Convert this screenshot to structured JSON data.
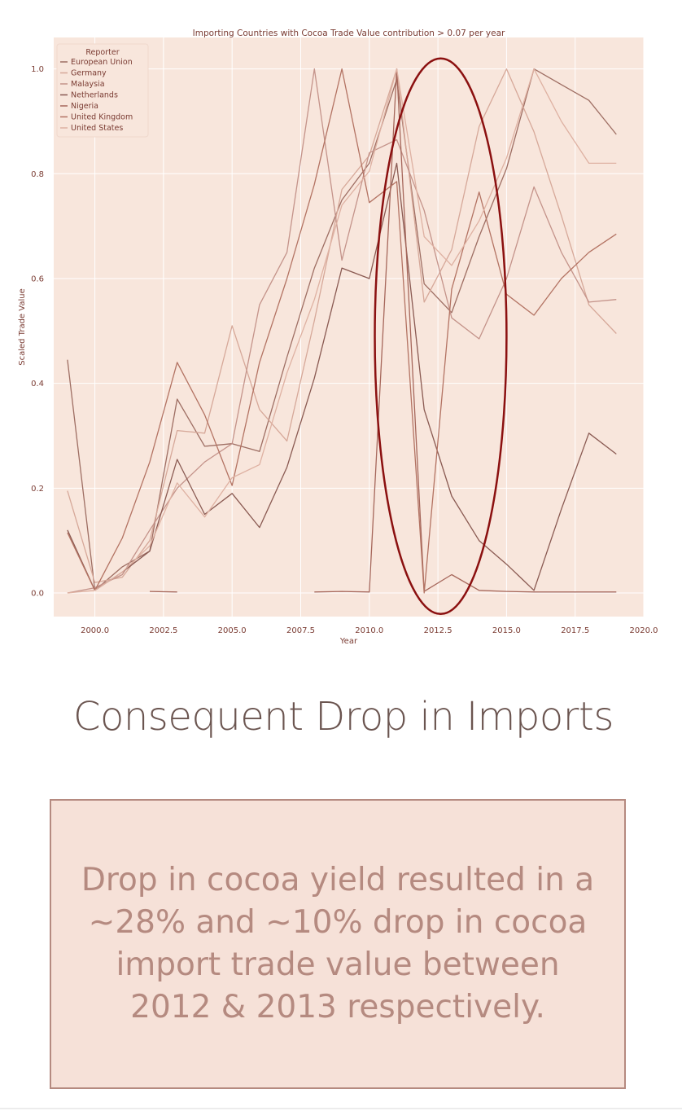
{
  "colors": {
    "background": "#f8e6dc",
    "grid": "#ffffff",
    "axis_text": "#7a3b32",
    "highlight_ellipse": "#8b1010",
    "box_fill": "#f6e1d8",
    "box_border": "#b58a80",
    "box_text": "#b58a80",
    "heading_text": "#6b5550"
  },
  "chart_data": {
    "type": "line",
    "title": "Importing Countries with Cocoa Trade Value contribution > 0.07 per year",
    "xlabel": "Year",
    "ylabel": "Scaled Trade Value",
    "xlim": [
      1998.5,
      2020.0
    ],
    "ylim": [
      -0.045,
      1.06
    ],
    "xticks": [
      2000.0,
      2002.5,
      2005.0,
      2007.5,
      2010.0,
      2012.5,
      2015.0,
      2017.5,
      2020.0
    ],
    "xtick_labels": [
      "2000.0",
      "2002.5",
      "2005.0",
      "2007.5",
      "2010.0",
      "2012.5",
      "2015.0",
      "2017.5",
      "2020.0"
    ],
    "yticks": [
      0.0,
      0.2,
      0.4,
      0.6,
      0.8,
      1.0
    ],
    "ytick_labels": [
      "0.0",
      "0.2",
      "0.4",
      "0.6",
      "0.8",
      "1.0"
    ],
    "grid": true,
    "legend": {
      "title": "Reporter",
      "placement": "top-left"
    },
    "highlight": {
      "shape": "ellipse",
      "x_center": 2012.6,
      "y_center": 0.49,
      "x_halfwidth": 2.4,
      "y_halfheight": 0.53
    },
    "series": [
      {
        "name": "European Union",
        "color": "#9e6e63",
        "points": [
          [
            1999,
            0.445
          ],
          [
            2000,
            0.005
          ],
          [
            2001,
            0.05
          ],
          [
            2002,
            0.08
          ],
          [
            2003,
            0.37
          ],
          [
            2004,
            0.28
          ],
          [
            2005,
            0.285
          ],
          [
            2006,
            0.27
          ],
          [
            2007,
            0.45
          ],
          [
            2008,
            0.62
          ],
          [
            2009,
            0.75
          ],
          [
            2010,
            0.82
          ],
          [
            2011,
            0.98
          ],
          [
            2012,
            0.59
          ],
          [
            2013,
            0.535
          ],
          [
            2014,
            0.68
          ],
          [
            2015,
            0.81
          ],
          [
            2016,
            1.0
          ],
          [
            2017,
            0.97
          ],
          [
            2018,
            0.94
          ],
          [
            2019,
            0.875
          ]
        ]
      },
      {
        "name": "Germany",
        "color": "#d6a899",
        "points": [
          [
            1999,
            0.195
          ],
          [
            2000,
            0.02
          ],
          [
            2001,
            0.03
          ],
          [
            2002,
            0.1
          ],
          [
            2003,
            0.31
          ],
          [
            2004,
            0.305
          ],
          [
            2005,
            0.51
          ],
          [
            2006,
            0.35
          ],
          [
            2007,
            0.29
          ],
          [
            2008,
            0.52
          ],
          [
            2009,
            0.77
          ],
          [
            2010,
            0.835
          ],
          [
            2011,
            1.0
          ],
          [
            2012,
            0.555
          ],
          [
            2013,
            0.655
          ],
          [
            2014,
            0.89
          ],
          [
            2015,
            1.0
          ],
          [
            2016,
            0.88
          ],
          [
            2017,
            0.72
          ],
          [
            2018,
            0.55
          ],
          [
            2019,
            0.495
          ]
        ]
      },
      {
        "name": "Malaysia",
        "color": "#c4938a",
        "points": [
          [
            1999,
            0.0
          ],
          [
            2000,
            0.01
          ],
          [
            2001,
            0.035
          ],
          [
            2002,
            0.12
          ],
          [
            2003,
            0.2
          ],
          [
            2004,
            0.25
          ],
          [
            2005,
            0.285
          ],
          [
            2006,
            0.55
          ],
          [
            2007,
            0.65
          ],
          [
            2008,
            1.0
          ],
          [
            2009,
            0.635
          ],
          [
            2010,
            0.84
          ],
          [
            2011,
            0.865
          ],
          [
            2012,
            0.73
          ],
          [
            2013,
            0.525
          ],
          [
            2014,
            0.485
          ],
          [
            2015,
            0.6
          ],
          [
            2016,
            0.775
          ],
          [
            2017,
            0.65
          ],
          [
            2018,
            0.555
          ],
          [
            2019,
            0.56
          ]
        ]
      },
      {
        "name": "Netherlands",
        "color": "#8a5a52",
        "points": [
          [
            1999,
            0.12
          ],
          [
            2000,
            0.005
          ],
          [
            2001,
            0.04
          ],
          [
            2002,
            0.08
          ],
          [
            2003,
            0.255
          ],
          [
            2004,
            0.15
          ],
          [
            2005,
            0.19
          ],
          [
            2006,
            0.125
          ],
          [
            2007,
            0.24
          ],
          [
            2008,
            0.41
          ],
          [
            2009,
            0.62
          ],
          [
            2010,
            0.6
          ],
          [
            2011,
            0.82
          ],
          [
            2012,
            0.35
          ],
          [
            2013,
            0.185
          ],
          [
            2014,
            0.1
          ],
          [
            2015,
            0.055
          ],
          [
            2016,
            0.005
          ],
          [
            2017,
            0.16
          ],
          [
            2018,
            0.305
          ],
          [
            2019,
            0.265
          ]
        ]
      },
      {
        "name": "Nigeria",
        "color": "#a6675b",
        "points": [
          [
            2002,
            0.003
          ],
          [
            2003,
            0.002
          ],
          [
            null,
            null
          ],
          [
            2008,
            0.002
          ],
          [
            2009,
            0.003
          ],
          [
            2010,
            0.002
          ],
          [
            2011,
            1.0
          ],
          [
            2012,
            0.003
          ],
          [
            2013,
            0.035
          ],
          [
            2014,
            0.005
          ],
          [
            2015,
            0.003
          ],
          [
            2016,
            0.002
          ],
          [
            2017,
            0.002
          ],
          [
            2018,
            0.002
          ],
          [
            2019,
            0.002
          ]
        ]
      },
      {
        "name": "United Kingdom",
        "color": "#b37363",
        "points": [
          [
            1999,
            0.115
          ],
          [
            2000,
            0.005
          ],
          [
            2001,
            0.105
          ],
          [
            2002,
            0.25
          ],
          [
            2003,
            0.44
          ],
          [
            2004,
            0.34
          ],
          [
            2005,
            0.205
          ],
          [
            2006,
            0.44
          ],
          [
            2007,
            0.6
          ],
          [
            2008,
            0.78
          ],
          [
            2009,
            1.0
          ],
          [
            2010,
            0.745
          ],
          [
            2011,
            0.785
          ],
          [
            2012,
            0.0
          ],
          [
            2013,
            0.58
          ],
          [
            2014,
            0.765
          ],
          [
            2015,
            0.57
          ],
          [
            2016,
            0.53
          ],
          [
            2017,
            0.6
          ],
          [
            2018,
            0.65
          ],
          [
            2019,
            0.685
          ]
        ]
      },
      {
        "name": "United States",
        "color": "#deb1a2",
        "points": [
          [
            1999,
            0.0
          ],
          [
            2000,
            0.005
          ],
          [
            2001,
            0.04
          ],
          [
            2002,
            0.09
          ],
          [
            2003,
            0.21
          ],
          [
            2004,
            0.145
          ],
          [
            2005,
            0.22
          ],
          [
            2006,
            0.245
          ],
          [
            2007,
            0.42
          ],
          [
            2008,
            0.56
          ],
          [
            2009,
            0.74
          ],
          [
            2010,
            0.805
          ],
          [
            2011,
            1.0
          ],
          [
            2012,
            0.68
          ],
          [
            2013,
            0.625
          ],
          [
            2014,
            0.71
          ],
          [
            2015,
            0.83
          ],
          [
            2016,
            1.0
          ],
          [
            2017,
            0.9
          ],
          [
            2018,
            0.82
          ],
          [
            2019,
            0.82
          ]
        ]
      }
    ]
  },
  "heading": "Consequent Drop in Imports",
  "note": "Drop in cocoa yield resulted in a ~28% and ~10% drop in cocoa import trade value between 2012 & 2013 respectively."
}
